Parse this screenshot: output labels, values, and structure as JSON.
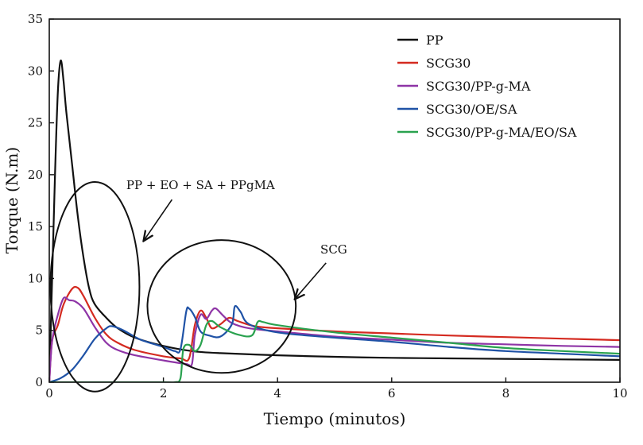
{
  "chart_data": {
    "type": "line",
    "title": "",
    "xlabel": "Tiempo (minutos)",
    "ylabel": "Torque (N.m)",
    "xlim": [
      0,
      10
    ],
    "ylim": [
      0,
      35
    ],
    "x_ticks": [
      0,
      2,
      4,
      6,
      8,
      10
    ],
    "y_ticks": [
      0,
      5,
      10,
      15,
      20,
      25,
      30,
      35
    ],
    "grid": false,
    "legend_position": "top-right",
    "series": [
      {
        "name": "PP",
        "color": "#111111",
        "points": [
          [
            0,
            0
          ],
          [
            0.05,
            10
          ],
          [
            0.1,
            20
          ],
          [
            0.15,
            28
          ],
          [
            0.2,
            31
          ],
          [
            0.25,
            29
          ],
          [
            0.3,
            26
          ],
          [
            0.4,
            21
          ],
          [
            0.5,
            16
          ],
          [
            0.6,
            12
          ],
          [
            0.7,
            9
          ],
          [
            0.8,
            7.5
          ],
          [
            1.0,
            6.2
          ],
          [
            1.2,
            5.2
          ],
          [
            1.5,
            4.3
          ],
          [
            2.0,
            3.5
          ],
          [
            2.5,
            3.0
          ],
          [
            3.0,
            2.8
          ],
          [
            4.0,
            2.6
          ],
          [
            5.0,
            2.45
          ],
          [
            6.0,
            2.35
          ],
          [
            7.0,
            2.3
          ],
          [
            8.0,
            2.25
          ],
          [
            9.0,
            2.2
          ],
          [
            10.0,
            2.15
          ]
        ]
      },
      {
        "name": "SCG30",
        "color": "#d42a20",
        "points": [
          [
            0,
            0
          ],
          [
            0.05,
            4
          ],
          [
            0.15,
            5.5
          ],
          [
            0.25,
            7.5
          ],
          [
            0.4,
            9
          ],
          [
            0.5,
            9.1
          ],
          [
            0.6,
            8.3
          ],
          [
            0.8,
            6.2
          ],
          [
            1.0,
            4.6
          ],
          [
            1.2,
            3.8
          ],
          [
            1.5,
            3.1
          ],
          [
            2.0,
            2.5
          ],
          [
            2.3,
            2.3
          ],
          [
            2.45,
            2.3
          ],
          [
            2.55,
            5.5
          ],
          [
            2.65,
            6.9
          ],
          [
            2.75,
            6.2
          ],
          [
            2.85,
            5.2
          ],
          [
            3.0,
            5.6
          ],
          [
            3.15,
            6.2
          ],
          [
            3.3,
            5.9
          ],
          [
            3.6,
            5.4
          ],
          [
            4.0,
            5.2
          ],
          [
            5.0,
            4.9
          ],
          [
            6.0,
            4.7
          ],
          [
            7.0,
            4.5
          ],
          [
            8.0,
            4.35
          ],
          [
            9.0,
            4.2
          ],
          [
            10.0,
            4.05
          ]
        ]
      },
      {
        "name": "SCG30/PP-g-MA",
        "color": "#8e34a6",
        "points": [
          [
            0,
            0
          ],
          [
            0.05,
            4
          ],
          [
            0.15,
            6.5
          ],
          [
            0.25,
            8.1
          ],
          [
            0.35,
            7.9
          ],
          [
            0.45,
            7.8
          ],
          [
            0.6,
            7.1
          ],
          [
            0.8,
            5.3
          ],
          [
            1.0,
            3.8
          ],
          [
            1.2,
            3.1
          ],
          [
            1.5,
            2.6
          ],
          [
            2.0,
            2.1
          ],
          [
            2.4,
            1.75
          ],
          [
            2.5,
            1.75
          ],
          [
            2.55,
            4.5
          ],
          [
            2.65,
            6.5
          ],
          [
            2.75,
            6.1
          ],
          [
            2.85,
            6.9
          ],
          [
            2.92,
            7.1
          ],
          [
            3.05,
            6.4
          ],
          [
            3.2,
            5.7
          ],
          [
            3.5,
            5.2
          ],
          [
            4.0,
            4.9
          ],
          [
            5.0,
            4.4
          ],
          [
            6.0,
            4.1
          ],
          [
            7.0,
            3.8
          ],
          [
            8.0,
            3.65
          ],
          [
            9.0,
            3.5
          ],
          [
            10.0,
            3.4
          ]
        ]
      },
      {
        "name": "SCG30/OE/SA",
        "color": "#1f52a6",
        "points": [
          [
            0,
            0
          ],
          [
            0.2,
            0.4
          ],
          [
            0.4,
            1.2
          ],
          [
            0.6,
            2.6
          ],
          [
            0.8,
            4.2
          ],
          [
            1.0,
            5.2
          ],
          [
            1.1,
            5.4
          ],
          [
            1.3,
            5.0
          ],
          [
            1.6,
            4.1
          ],
          [
            2.0,
            3.4
          ],
          [
            2.2,
            3.0
          ],
          [
            2.3,
            3.2
          ],
          [
            2.4,
            6.8
          ],
          [
            2.45,
            7.1
          ],
          [
            2.55,
            6.3
          ],
          [
            2.65,
            4.9
          ],
          [
            2.8,
            4.5
          ],
          [
            3.0,
            4.4
          ],
          [
            3.2,
            5.6
          ],
          [
            3.25,
            7.3
          ],
          [
            3.35,
            6.8
          ],
          [
            3.5,
            5.6
          ],
          [
            4.0,
            4.8
          ],
          [
            5.0,
            4.3
          ],
          [
            6.0,
            3.9
          ],
          [
            7.0,
            3.4
          ],
          [
            8.0,
            3.0
          ],
          [
            9.0,
            2.75
          ],
          [
            10.0,
            2.5
          ]
        ]
      },
      {
        "name": "SCG30/PP-g-MA/EO/SA",
        "color": "#2aa24f",
        "points": [
          [
            0,
            0
          ],
          [
            1.0,
            0
          ],
          [
            2.0,
            0
          ],
          [
            2.2,
            0
          ],
          [
            2.3,
            0.4
          ],
          [
            2.35,
            3.2
          ],
          [
            2.45,
            3.6
          ],
          [
            2.55,
            3.0
          ],
          [
            2.65,
            3.6
          ],
          [
            2.75,
            5.5
          ],
          [
            2.85,
            5.9
          ],
          [
            3.0,
            5.3
          ],
          [
            3.3,
            4.6
          ],
          [
            3.55,
            4.5
          ],
          [
            3.65,
            5.8
          ],
          [
            3.75,
            5.8
          ],
          [
            4.0,
            5.5
          ],
          [
            5.0,
            4.8
          ],
          [
            6.0,
            4.3
          ],
          [
            7.0,
            3.8
          ],
          [
            8.0,
            3.3
          ],
          [
            9.0,
            3.0
          ],
          [
            10.0,
            2.75
          ]
        ]
      }
    ],
    "annotations": [
      {
        "name": "group-1",
        "text": "PP + EO + SA + PPgMA",
        "ellipse": {
          "cx": 0.8,
          "cy": 9.2,
          "rx": 0.78,
          "ry": 10.1
        },
        "label_at": [
          1.35,
          18.6
        ],
        "arrow_from": [
          2.15,
          17.6
        ],
        "arrow_to": [
          1.65,
          13.6
        ]
      },
      {
        "name": "group-2",
        "text": "SCG",
        "ellipse": {
          "cx": 3.02,
          "cy": 7.3,
          "rx": 1.3,
          "ry": 6.4
        },
        "label_at": [
          4.75,
          12.4
        ],
        "arrow_from": [
          4.85,
          11.5
        ],
        "arrow_to": [
          4.3,
          8.0
        ]
      }
    ]
  }
}
